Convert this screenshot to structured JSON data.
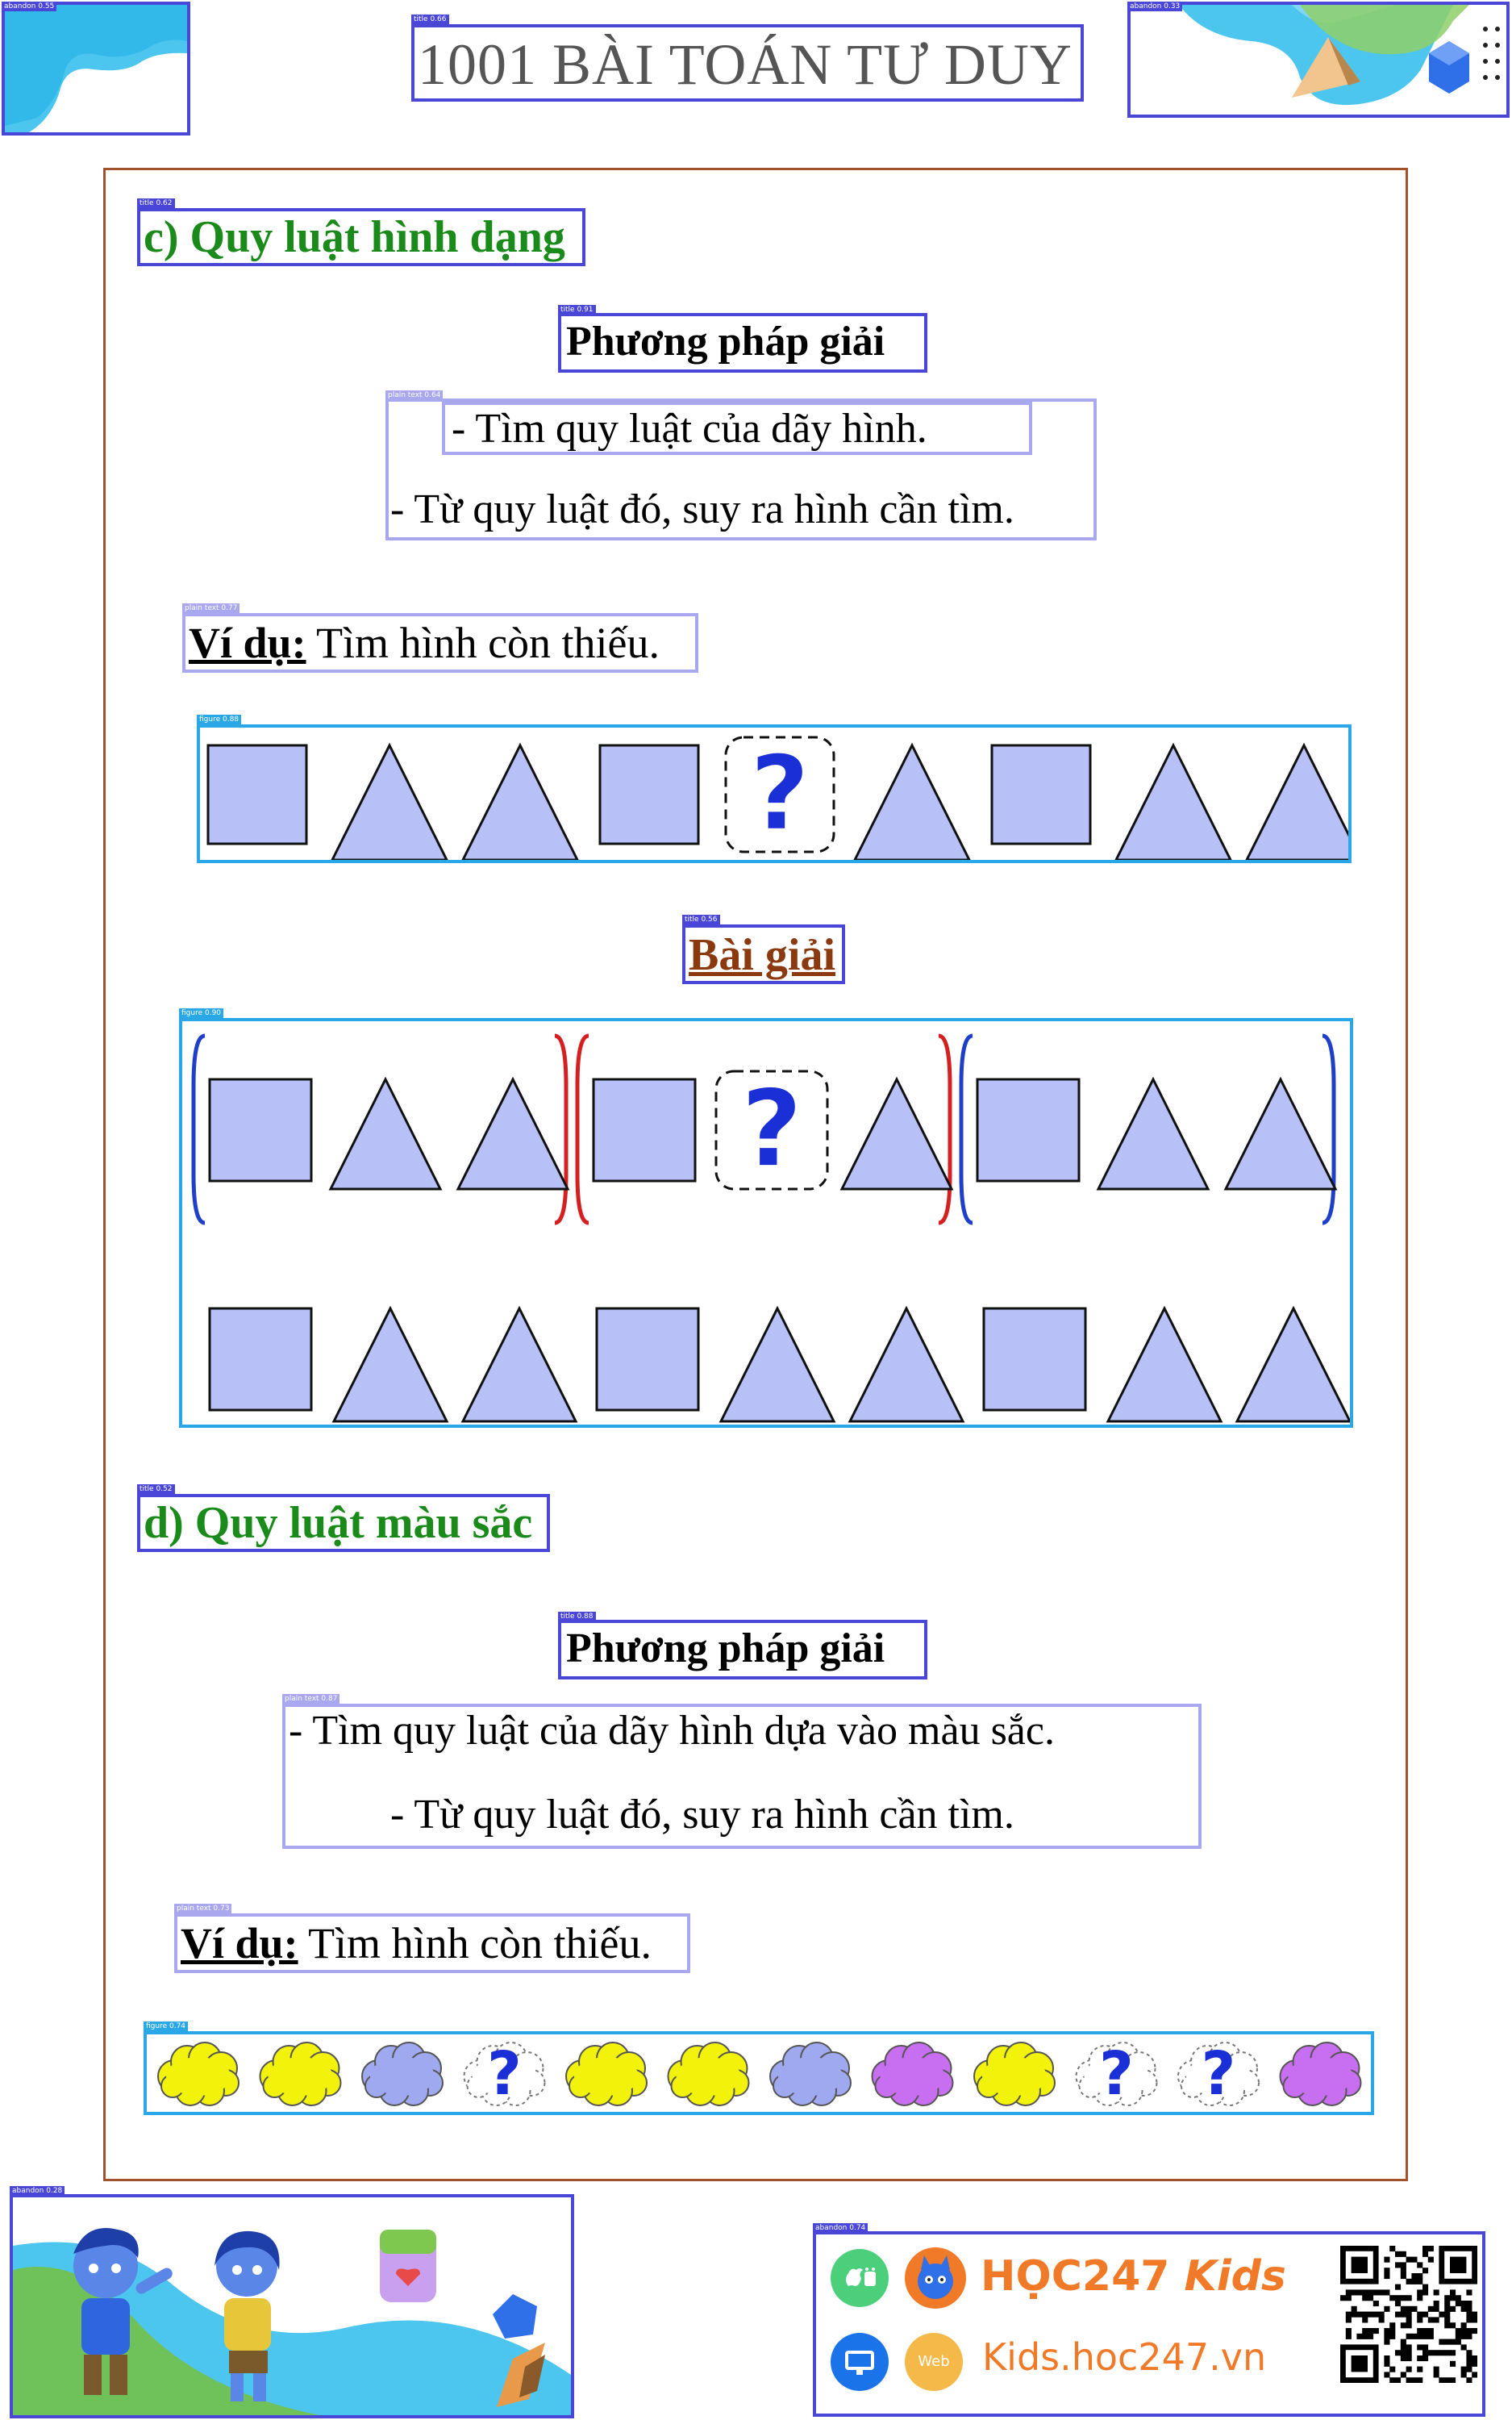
{
  "header": {
    "title": "1001 BÀI TOÁN TƯ DUY"
  },
  "section_c": {
    "title": "c) Quy luật hình dạng",
    "method_title": "Phương pháp giải",
    "steps": [
      "-      Tìm quy luật của dãy hình.",
      "- Từ quy luật đó, suy ra hình cần tìm."
    ],
    "example_label": "Ví dụ:",
    "example_text": " Tìm hình còn thiếu.",
    "sequence": [
      "square",
      "triangle",
      "triangle",
      "square",
      "question",
      "triangle",
      "square",
      "triangle",
      "triangle"
    ],
    "solution_title": "Bài giải",
    "solution_groups": [
      [
        "square",
        "triangle",
        "triangle"
      ],
      [
        "square",
        "question",
        "triangle"
      ],
      [
        "square",
        "triangle",
        "triangle"
      ]
    ],
    "answer_sequence": [
      "square",
      "triangle",
      "triangle",
      "square",
      "triangle",
      "triangle",
      "square",
      "triangle",
      "triangle"
    ]
  },
  "section_d": {
    "title": "d) Quy luật màu sắc",
    "method_title": "Phương pháp giải",
    "steps": [
      "-      Tìm quy luật của dãy hình dựa vào màu sắc.",
      "- Từ quy luật đó, suy ra hình cần tìm."
    ],
    "example_label": "Ví dụ:",
    "example_text": " Tìm hình còn thiếu.",
    "clouds": [
      "yellow",
      "yellow",
      "blue",
      "question",
      "yellow",
      "yellow",
      "blue",
      "purple",
      "yellow",
      "question",
      "question",
      "purple"
    ]
  },
  "footer": {
    "brand_left": "HỌC247",
    "brand_right": "Kids",
    "url": "Kids.hoc247.vn",
    "web_label": "Web"
  },
  "colors": {
    "shape_fill": "#b7c0f7",
    "cloud_yellow": "#f2f20a",
    "cloud_blue": "#9ea9ef",
    "cloud_purple": "#c86ef0",
    "question": "#1b2fd6",
    "frame_brown": "#a0522d",
    "section_green": "#1a8a1a"
  }
}
